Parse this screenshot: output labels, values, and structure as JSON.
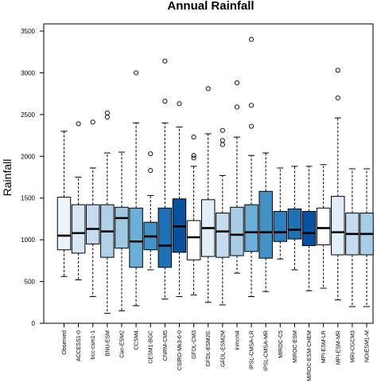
{
  "chart_data": {
    "type": "boxplot",
    "title": "Annual Rainfall",
    "ylabel": "Rainfall",
    "ylim": [
      0,
      3500
    ],
    "yticks": [
      0,
      500,
      1000,
      1500,
      2000,
      2500,
      3000,
      3500
    ],
    "grid": false,
    "categories": [
      "Observed",
      "ACCESS1-0",
      "bcc-csm1-1",
      "BNU-ESM",
      "Can-ESM2",
      "CCSM4",
      "CESM1-BGC",
      "CNRM-CM5",
      "CSIRO-Mk3-6-0",
      "GFDL-CM3",
      "GFDL-ESM2G",
      "GFDL-ESM2M",
      "inmcm4",
      "IPSL-CMSA-LR",
      "IPSL-CMSA-MR",
      "MIROC-C5",
      "MIROC-ESM",
      "MIROC-ESM-CHEM",
      "MPI-ESM-LR",
      "MPI-ESM-MR",
      "MRI-CGCM3",
      "NOrESM1-M"
    ],
    "boxes": [
      {
        "min": 560,
        "q1": 880,
        "median": 1050,
        "q3": 1510,
        "max": 2300,
        "outliers": [],
        "color": "#ecf4fb"
      },
      {
        "min": 520,
        "q1": 840,
        "median": 1080,
        "q3": 1420,
        "max": 1750,
        "outliers": [
          2390
        ],
        "color": "#d6e6f4"
      },
      {
        "min": 320,
        "q1": 950,
        "median": 1130,
        "q3": 1420,
        "max": 1860,
        "outliers": [
          2410
        ],
        "color": "#c6dbef"
      },
      {
        "min": 120,
        "q1": 790,
        "median": 1100,
        "q3": 1420,
        "max": 2040,
        "outliers": [
          2470,
          2520
        ],
        "color": "#b0d0e8"
      },
      {
        "min": 150,
        "q1": 900,
        "median": 1260,
        "q3": 1390,
        "max": 2050,
        "outliers": [],
        "color": "#9ecae1"
      },
      {
        "min": 210,
        "q1": 670,
        "median": 980,
        "q3": 1380,
        "max": 2400,
        "outliers": [
          3000
        ],
        "color": "#6baed6"
      },
      {
        "min": 640,
        "q1": 880,
        "median": 1040,
        "q3": 1210,
        "max": 1530,
        "outliers": [
          1830,
          2030
        ],
        "color": "#4292c6"
      },
      {
        "min": 290,
        "q1": 670,
        "median": 930,
        "q3": 1380,
        "max": 2400,
        "outliers": [
          2660,
          3140
        ],
        "color": "#2171b5"
      },
      {
        "min": 320,
        "q1": 850,
        "median": 1160,
        "q3": 1490,
        "max": 2350,
        "outliers": [
          2630
        ],
        "color": "#08519c"
      },
      {
        "min": 340,
        "q1": 760,
        "median": 1030,
        "q3": 1230,
        "max": 1880,
        "outliers": [
          1980,
          2010,
          2230
        ],
        "color": "#ffffff"
      },
      {
        "min": 250,
        "q1": 800,
        "median": 1140,
        "q3": 1480,
        "max": 2270,
        "outliers": [
          2810
        ],
        "color": "#e3eef8"
      },
      {
        "min": 220,
        "q1": 790,
        "median": 1100,
        "q3": 1320,
        "max": 1770,
        "outliers": [
          2140,
          2190,
          2310
        ],
        "color": "#c6dbef"
      },
      {
        "min": 600,
        "q1": 810,
        "median": 1060,
        "q3": 1390,
        "max": 2230,
        "outliers": [
          2590,
          2880
        ],
        "color": "#a8cde6"
      },
      {
        "min": 320,
        "q1": 860,
        "median": 1090,
        "q3": 1420,
        "max": 2010,
        "outliers": [
          2360,
          2610,
          3400
        ],
        "color": "#6baed6"
      },
      {
        "min": 380,
        "q1": 780,
        "median": 1090,
        "q3": 1580,
        "max": 2040,
        "outliers": [],
        "color": "#4292c6"
      },
      {
        "min": 770,
        "q1": 980,
        "median": 1090,
        "q3": 1340,
        "max": 1860,
        "outliers": [],
        "color": "#2f7fc1"
      },
      {
        "min": 640,
        "q1": 1010,
        "median": 1120,
        "q3": 1370,
        "max": 1880,
        "outliers": [],
        "color": "#2171b5"
      },
      {
        "min": 390,
        "q1": 930,
        "median": 1080,
        "q3": 1340,
        "max": 1880,
        "outliers": [],
        "color": "#08519c"
      },
      {
        "min": 420,
        "q1": 940,
        "median": 1140,
        "q3": 1380,
        "max": 1900,
        "outliers": [],
        "color": "#ffffff"
      },
      {
        "min": 280,
        "q1": 820,
        "median": 1090,
        "q3": 1520,
        "max": 2460,
        "outliers": [
          2700,
          3030
        ],
        "color": "#e3eef8"
      },
      {
        "min": 200,
        "q1": 820,
        "median": 1070,
        "q3": 1320,
        "max": 1850,
        "outliers": [],
        "color": "#c6dbef"
      },
      {
        "min": 200,
        "q1": 820,
        "median": 1070,
        "q3": 1320,
        "max": 1850,
        "outliers": [],
        "color": "#a8cde6"
      }
    ]
  }
}
